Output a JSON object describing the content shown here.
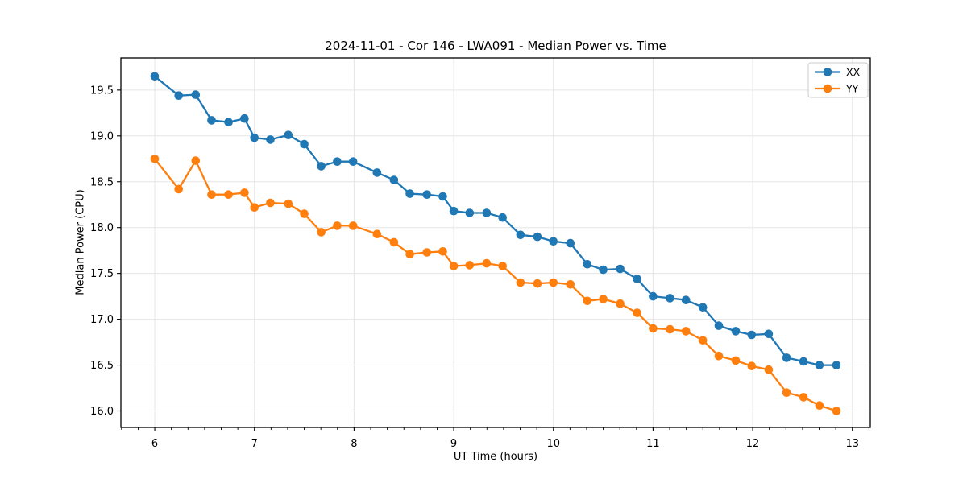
{
  "chart_data": {
    "type": "line",
    "title": "2024-11-01 - Cor 146 - LWA091 - Median Power vs. Time",
    "xlabel": "UT Time (hours)",
    "ylabel": "Median Power (CPU)",
    "xlim": [
      5.66,
      13.18
    ],
    "ylim": [
      15.82,
      19.85
    ],
    "x_ticks": [
      6,
      7,
      8,
      9,
      10,
      11,
      12,
      13
    ],
    "x_minor_tick_step": 0.166667,
    "y_ticks": [
      16.0,
      16.5,
      17.0,
      17.5,
      18.0,
      18.5,
      19.0,
      19.5
    ],
    "grid": true,
    "legend_position": "upper right",
    "x": [
      6.0,
      6.24,
      6.41,
      6.57,
      6.74,
      6.9,
      7.0,
      7.16,
      7.34,
      7.5,
      7.67,
      7.83,
      7.99,
      8.23,
      8.4,
      8.56,
      8.73,
      8.89,
      9.0,
      9.16,
      9.33,
      9.49,
      9.67,
      9.84,
      10.0,
      10.17,
      10.34,
      10.5,
      10.67,
      10.84,
      11.0,
      11.17,
      11.33,
      11.5,
      11.66,
      11.83,
      11.99,
      12.16,
      12.34,
      12.51,
      12.67,
      12.84
    ],
    "series": [
      {
        "name": "XX",
        "color": "#1f77b4",
        "values": [
          19.65,
          19.44,
          19.45,
          19.17,
          19.15,
          19.19,
          18.98,
          18.96,
          19.01,
          18.91,
          18.67,
          18.72,
          18.72,
          18.6,
          18.52,
          18.37,
          18.36,
          18.34,
          18.18,
          18.16,
          18.16,
          18.11,
          17.92,
          17.9,
          17.85,
          17.83,
          17.6,
          17.54,
          17.55,
          17.44,
          17.25,
          17.23,
          17.21,
          17.13,
          16.93,
          16.87,
          16.83,
          16.84,
          16.58,
          16.54,
          16.5,
          16.5
        ]
      },
      {
        "name": "YY",
        "color": "#ff7f0e",
        "values": [
          18.75,
          18.42,
          18.73,
          18.36,
          18.36,
          18.38,
          18.22,
          18.27,
          18.26,
          18.15,
          17.95,
          18.02,
          18.02,
          17.93,
          17.84,
          17.71,
          17.73,
          17.74,
          17.58,
          17.59,
          17.61,
          17.58,
          17.4,
          17.39,
          17.4,
          17.38,
          17.2,
          17.22,
          17.17,
          17.07,
          16.9,
          16.89,
          16.87,
          16.77,
          16.6,
          16.55,
          16.49,
          16.45,
          16.2,
          16.15,
          16.06,
          16.0
        ]
      }
    ],
    "style": {
      "grid_color": "#e5e5e5",
      "spine_color": "#000000",
      "background": "#ffffff",
      "line_width": 2.3,
      "marker_radius": 5.3
    }
  }
}
